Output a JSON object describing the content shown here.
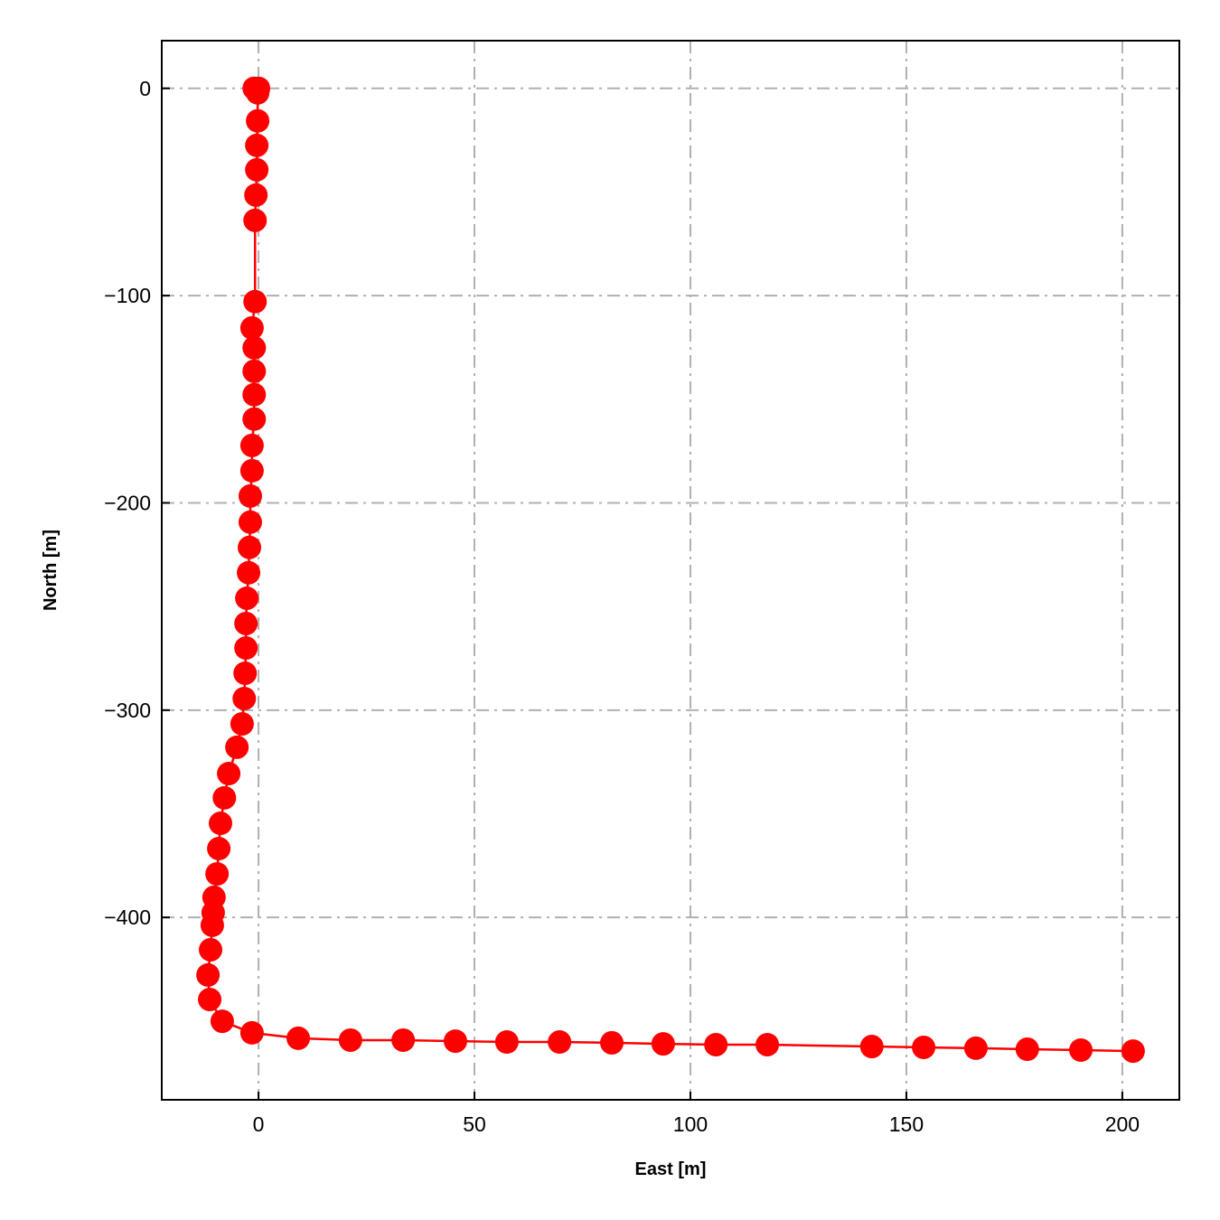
{
  "chart_data": {
    "type": "line",
    "title": "",
    "xlabel": "East [m]",
    "ylabel": "North [m]",
    "xlim": [
      -22.4,
      213.2
    ],
    "ylim": [
      -488,
      23
    ],
    "xticks": [
      0,
      50,
      100,
      150,
      200
    ],
    "yticks": [
      0,
      -100,
      -200,
      -300,
      -400
    ],
    "xtick_labels": [
      "0",
      "50",
      "100",
      "150",
      "200"
    ],
    "ytick_labels": [
      "0",
      "−100",
      "−200",
      "−300",
      "−400"
    ],
    "grid": true,
    "grid_style": "dash-dot",
    "marker": "circle",
    "colors": {
      "series": "#ff0000",
      "grid": "#b0b0b0"
    },
    "series": [
      {
        "x": [
          -1,
          0,
          -0.2,
          -0.2,
          -0.4,
          -0.4,
          -0.6,
          -0.8,
          -0.8,
          -1.5,
          -1,
          -1,
          -1,
          -1,
          -1.5,
          -1.5,
          -1.9,
          -1.9,
          -2.1,
          -2.3,
          -2.7,
          -2.9,
          -2.9,
          -3.1,
          -3.3,
          -3.8,
          -5,
          -6.9,
          -7.9,
          -8.8,
          -9.2,
          -9.6,
          -10.3,
          -10.5,
          -10.7,
          -11.1,
          -11.7,
          -11.3,
          -8.4,
          -1.5,
          9.2,
          21.3,
          33.5,
          45.6,
          57.5,
          69.7,
          81.8,
          93.7,
          105.9,
          117.8,
          142,
          154,
          166.1,
          178,
          190.4,
          202.5
        ],
        "y": [
          0,
          0,
          -2.2,
          -15.7,
          -27.5,
          -39.3,
          -51.5,
          -63.7,
          -102.9,
          -115.6,
          -125.2,
          -136.5,
          -147.8,
          -159.6,
          -172.3,
          -184.5,
          -196.7,
          -209.3,
          -221.5,
          -233.7,
          -246,
          -258.2,
          -270,
          -282.2,
          -294.4,
          -306.6,
          -317.9,
          -330.6,
          -342.3,
          -354.6,
          -366.8,
          -379,
          -390.3,
          -397.7,
          -403.8,
          -415.6,
          -427.8,
          -439.6,
          -450.1,
          -455.7,
          -458.3,
          -459.2,
          -459.2,
          -459.7,
          -460.1,
          -460.1,
          -460.5,
          -461,
          -461.4,
          -461.4,
          -462.3,
          -462.7,
          -463.1,
          -463.6,
          -464,
          -464.5
        ]
      }
    ]
  }
}
